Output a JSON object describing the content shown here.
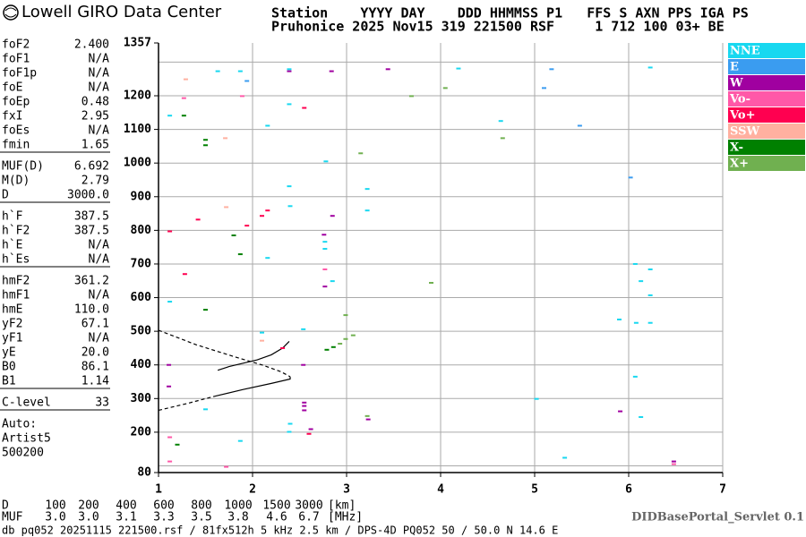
{
  "header": {
    "logo": "Lowell GIRO Data Center",
    "line1": "Station    YYYY DAY    DDD HHMMSS P1   FFS S AXN PPS IGA PS",
    "line2": "Pruhonice 2025 Nov15 319 221500 RSF     1 712 100 03+ BE"
  },
  "parameters": [
    [
      {
        "name": "foF2",
        "value": "2.400"
      },
      {
        "name": "foF1",
        "value": "N/A"
      },
      {
        "name": "foF1p",
        "value": "N/A"
      },
      {
        "name": "foE",
        "value": "N/A"
      },
      {
        "name": "foEp",
        "value": "0.48"
      },
      {
        "name": "fxI",
        "value": "2.95"
      },
      {
        "name": "foEs",
        "value": "N/A"
      },
      {
        "name": "fmin",
        "value": "1.65"
      }
    ],
    [
      {
        "name": "MUF(D)",
        "value": "6.692"
      },
      {
        "name": "M(D)",
        "value": "2.79"
      },
      {
        "name": "D",
        "value": "3000.0"
      }
    ],
    [
      {
        "name": "h`F",
        "value": "387.5"
      },
      {
        "name": "h`F2",
        "value": "387.5"
      },
      {
        "name": "h`E",
        "value": "N/A"
      },
      {
        "name": "h`Es",
        "value": "N/A"
      }
    ],
    [
      {
        "name": "hmF2",
        "value": "361.2"
      },
      {
        "name": "hmF1",
        "value": "N/A"
      },
      {
        "name": "hmE",
        "value": "110.0"
      },
      {
        "name": "yF2",
        "value": "67.1"
      },
      {
        "name": "yF1",
        "value": "N/A"
      },
      {
        "name": "yE",
        "value": "20.0"
      },
      {
        "name": "B0",
        "value": "86.1"
      },
      {
        "name": "B1",
        "value": "1.14"
      }
    ],
    [
      {
        "name": "C-level",
        "value": "33"
      }
    ],
    [
      {
        "name": "Auto:",
        "value": ""
      },
      {
        "name": "Artist5",
        "value": ""
      },
      {
        "name": "500200",
        "value": ""
      }
    ]
  ],
  "chart_data": {
    "type": "scatter",
    "xlim": [
      1,
      7
    ],
    "ylim": [
      80,
      1357
    ],
    "xticks": [
      1,
      2,
      3,
      4,
      5,
      6,
      7
    ],
    "yticks": [
      80,
      200,
      300,
      400,
      500,
      600,
      700,
      800,
      900,
      1000,
      1100,
      1200,
      1357
    ],
    "ygrid": [
      100,
      200,
      300,
      400,
      500,
      600,
      700,
      800,
      900,
      1000,
      1100,
      1200,
      1300
    ],
    "grid": true,
    "series": [
      {
        "name": "NNE",
        "color": "#18d8f0",
        "x": [
          1.63,
          1.87,
          2.39,
          4.19,
          6.23,
          1.12,
          2.16,
          2.39,
          4.64,
          2.78,
          2.39,
          3.22,
          3.22,
          2.4,
          2.77,
          2.77,
          2.16,
          2.85,
          6.23,
          6.13,
          6.23,
          6.07,
          5.9,
          6.08,
          6.23,
          1.12,
          2.54,
          2.1,
          5.02,
          1.5,
          2.4,
          2.39,
          1.87,
          5.32,
          6.07,
          6.13
        ],
        "y": [
          1273,
          1273,
          1279,
          1281,
          1284,
          1141,
          1111,
          1175,
          1125,
          1005,
          931,
          923,
          859,
          872,
          766,
          745,
          718,
          649,
          607,
          649,
          684,
          700,
          535,
          525,
          525,
          588,
          506,
          496,
          299,
          268,
          225,
          201,
          174,
          124,
          365,
          245
        ]
      },
      {
        "name": "E",
        "color": "#3a9cf0",
        "x": [
          1.94,
          5.1,
          6.02,
          5.48,
          5.18
        ],
        "y": [
          1244,
          1223,
          957,
          1111,
          1279
        ]
      },
      {
        "name": "W",
        "color": "#a000a0",
        "x": [
          3.44,
          2.84,
          2.39,
          2.85,
          2.76,
          2.77,
          2.54,
          1.11,
          1.11,
          2.55,
          2.55,
          3.23,
          5.91,
          6.48,
          2.62,
          2.55
        ],
        "y": [
          1279,
          1273,
          1273,
          843,
          787,
          633,
          400,
          400,
          336,
          288,
          278,
          238,
          262,
          113,
          209,
          265
        ]
      },
      {
        "name": "Vo-",
        "color": "#ff58a8",
        "x": [
          1.27,
          1.89,
          1.12,
          1.12,
          2.77,
          1.72,
          6.48
        ],
        "y": [
          1193,
          1199,
          185,
          113,
          684,
          97,
          105
        ]
      },
      {
        "name": "Vo+",
        "color": "#ff0050",
        "x": [
          2.55,
          1.42,
          1.94,
          2.1,
          2.16,
          1.12,
          1.28,
          2.32,
          2.6
        ],
        "y": [
          1164,
          832,
          814,
          843,
          859,
          797,
          670,
          450,
          195
        ]
      },
      {
        "name": "SSW",
        "color": "#ffb0a0",
        "x": [
          1.71,
          1.72,
          2.1,
          1.29
        ],
        "y": [
          1074,
          869,
          472,
          1249
        ]
      },
      {
        "name": "X-",
        "color": "#008000",
        "x": [
          1.5,
          1.5,
          1.87,
          1.8,
          1.27,
          2.79,
          2.86,
          1.2,
          1.5
        ],
        "y": [
          1069,
          564,
          729,
          785,
          1141,
          445,
          453,
          163,
          1053
        ]
      },
      {
        "name": "X+",
        "color": "#70b050",
        "x": [
          2.93,
          2.99,
          3.07,
          2.99,
          4.05,
          4.66,
          3.15,
          3.22,
          3.9,
          3.69
        ],
        "y": [
          463,
          477,
          488,
          548,
          1223,
          1074,
          1029,
          248,
          644,
          1199
        ]
      }
    ],
    "profile": {
      "x": [
        1.0,
        1.4,
        1.8,
        2.1,
        2.3,
        2.4,
        null,
        1.0,
        1.3,
        1.6
      ],
      "y": [
        503,
        460,
        425,
        400,
        380,
        365,
        null,
        265,
        285,
        307
      ]
    },
    "trace": {
      "x": [
        1.63,
        1.75,
        1.9,
        2.05,
        2.2,
        2.32,
        2.39,
        null,
        1.6,
        1.9,
        2.2,
        2.4,
        2.4
      ],
      "y": [
        384,
        395,
        405,
        415,
        430,
        450,
        470,
        null,
        307,
        327,
        345,
        358,
        365
      ]
    }
  },
  "dmuf": {
    "d_label": "D",
    "d": [
      100,
      200,
      400,
      600,
      800,
      1000,
      1500,
      3000
    ],
    "d_unit": "[km]",
    "muf_label": "MUF",
    "muf": [
      "3.0",
      "3.0",
      "3.1",
      "3.3",
      "3.5",
      "3.8",
      "4.6",
      "6.7"
    ],
    "muf_unit": "[MHz]"
  },
  "footer": {
    "left": "db pq052 20251115 221500.rsf / 81fx512h 5 kHz 2.5 km / DPS-4D PQ052 50 / 50.0 N 14.6 E",
    "right": "DIDBasePortal_Servlet 0.1"
  }
}
